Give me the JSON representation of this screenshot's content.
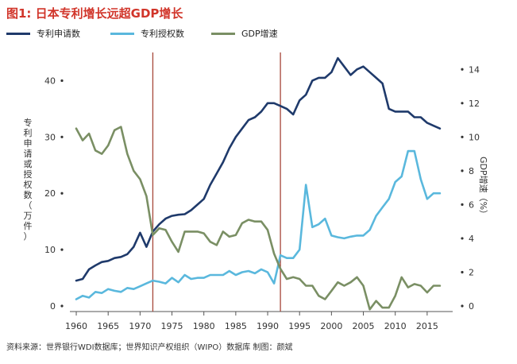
{
  "title": "图1: 日本专利增长远超GDP增长",
  "source": "资料来源：世界银行WDI数据库；世界知识产权组织（WIPO）数据库      制图：颜斌",
  "colors": {
    "applications": "#1f3a6b",
    "grants": "#5ab8dd",
    "gdp": "#7a8f64",
    "markers": "#a6473a",
    "title": "#d1352a"
  },
  "chart_data": {
    "type": "line",
    "left_axis_label": "专利申请或授权数（万件）",
    "right_axis_label": "GDP增速（%）",
    "x_ticks": [
      1960,
      1965,
      1970,
      1975,
      1980,
      1985,
      1990,
      1995,
      2000,
      2005,
      2010,
      2015
    ],
    "xlim": [
      1959,
      2019
    ],
    "ylim_left": [
      0,
      45
    ],
    "ylim_right": [
      0,
      15
    ],
    "left_ticks": [
      0,
      10,
      20,
      30,
      40
    ],
    "right_ticks": [
      0,
      2,
      4,
      6,
      8,
      10,
      12,
      14
    ],
    "vertical_markers": [
      1972,
      1992
    ],
    "legend_position": "top-left",
    "series": [
      {
        "name": "专利申请数",
        "axis": "left",
        "color_key": "applications",
        "x": [
          1960,
          1961,
          1962,
          1963,
          1964,
          1965,
          1966,
          1967,
          1968,
          1969,
          1970,
          1971,
          1972,
          1973,
          1974,
          1975,
          1976,
          1977,
          1978,
          1979,
          1980,
          1981,
          1982,
          1983,
          1984,
          1985,
          1986,
          1987,
          1988,
          1989,
          1990,
          1991,
          1992,
          1993,
          1994,
          1995,
          1996,
          1997,
          1998,
          1999,
          2000,
          2001,
          2002,
          2003,
          2004,
          2005,
          2006,
          2007,
          2008,
          2009,
          2010,
          2011,
          2012,
          2013,
          2014,
          2015,
          2016,
          2017
        ],
        "values": [
          4.5,
          4.8,
          6.5,
          7.2,
          7.8,
          8.0,
          8.5,
          8.7,
          9.2,
          10.5,
          13.0,
          10.5,
          13.2,
          14.5,
          15.5,
          16.0,
          16.2,
          16.3,
          17.0,
          18.0,
          19.0,
          21.5,
          23.5,
          25.5,
          28.0,
          30.0,
          31.5,
          33.0,
          33.5,
          34.5,
          36.0,
          36.0,
          35.5,
          35.0,
          34.0,
          36.5,
          37.5,
          40.0,
          40.5,
          40.5,
          41.5,
          44.0,
          42.5,
          41.0,
          42.0,
          42.5,
          41.5,
          40.5,
          39.5,
          35.0,
          34.5,
          34.5,
          34.5,
          33.5,
          33.5,
          32.5,
          32.0,
          31.5
        ]
      },
      {
        "name": "专利授权数",
        "axis": "left",
        "color_key": "grants",
        "x": [
          1960,
          1961,
          1962,
          1963,
          1964,
          1965,
          1966,
          1967,
          1968,
          1969,
          1970,
          1971,
          1972,
          1973,
          1974,
          1975,
          1976,
          1977,
          1978,
          1979,
          1980,
          1981,
          1982,
          1983,
          1984,
          1985,
          1986,
          1987,
          1988,
          1989,
          1990,
          1991,
          1992,
          1993,
          1994,
          1995,
          1996,
          1997,
          1998,
          1999,
          2000,
          2001,
          2002,
          2003,
          2004,
          2005,
          2006,
          2007,
          2008,
          2009,
          2010,
          2011,
          2012,
          2013,
          2014,
          2015,
          2016,
          2017
        ],
        "values": [
          1.2,
          1.8,
          1.5,
          2.5,
          2.3,
          3.0,
          2.7,
          2.5,
          3.2,
          3.0,
          3.5,
          4.0,
          4.5,
          4.3,
          4.0,
          5.0,
          4.2,
          5.5,
          4.8,
          5.0,
          5.0,
          5.5,
          5.5,
          5.5,
          6.2,
          5.5,
          6.0,
          6.2,
          5.8,
          6.5,
          6.0,
          4.0,
          9.0,
          8.5,
          8.5,
          10.0,
          21.5,
          14.0,
          14.5,
          15.5,
          12.5,
          12.2,
          12.0,
          12.3,
          12.5,
          12.5,
          13.5,
          16.0,
          17.5,
          19.0,
          22.0,
          23.0,
          27.5,
          27.5,
          22.5,
          19.0,
          20.0,
          20.0
        ]
      },
      {
        "name": "GDP增速",
        "axis": "right",
        "color_key": "gdp",
        "x": [
          1960,
          1961,
          1962,
          1963,
          1964,
          1965,
          1966,
          1967,
          1968,
          1969,
          1970,
          1971,
          1972,
          1973,
          1974,
          1975,
          1976,
          1977,
          1978,
          1979,
          1980,
          1981,
          1982,
          1983,
          1984,
          1985,
          1986,
          1987,
          1988,
          1989,
          1990,
          1991,
          1992,
          1993,
          1994,
          1995,
          1996,
          1997,
          1998,
          1999,
          2000,
          2001,
          2002,
          2003,
          2004,
          2005,
          2006,
          2007,
          2008,
          2009,
          2010,
          2011,
          2012,
          2013,
          2014,
          2015,
          2016,
          2017
        ],
        "values": [
          10.5,
          9.8,
          10.2,
          9.2,
          9.0,
          9.5,
          10.4,
          10.6,
          9.0,
          8.0,
          7.5,
          6.5,
          4.2,
          4.6,
          4.5,
          3.8,
          3.2,
          4.4,
          4.4,
          4.4,
          4.3,
          3.8,
          3.6,
          4.4,
          4.1,
          4.2,
          4.9,
          5.1,
          5.0,
          5.0,
          4.5,
          3.1,
          2.2,
          1.6,
          1.7,
          1.6,
          1.2,
          1.2,
          0.6,
          0.4,
          0.9,
          1.4,
          1.2,
          1.4,
          1.7,
          1.2,
          -0.2,
          0.3,
          -0.1,
          -0.1,
          0.6,
          1.7,
          1.1,
          1.3,
          1.2,
          0.8,
          1.2,
          1.2
        ]
      }
    ]
  }
}
